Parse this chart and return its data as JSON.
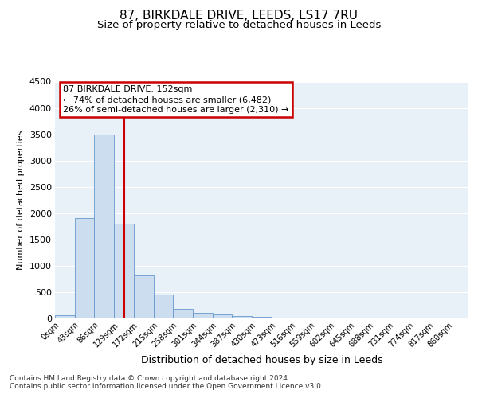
{
  "title1": "87, BIRKDALE DRIVE, LEEDS, LS17 7RU",
  "title2": "Size of property relative to detached houses in Leeds",
  "xlabel": "Distribution of detached houses by size in Leeds",
  "ylabel": "Number of detached properties",
  "bin_labels": [
    "0sqm",
    "43sqm",
    "86sqm",
    "129sqm",
    "172sqm",
    "215sqm",
    "258sqm",
    "301sqm",
    "344sqm",
    "387sqm",
    "430sqm",
    "473sqm",
    "516sqm",
    "559sqm",
    "602sqm",
    "645sqm",
    "688sqm",
    "731sqm",
    "774sqm",
    "817sqm",
    "860sqm"
  ],
  "bar_heights": [
    55,
    1900,
    3500,
    1800,
    820,
    450,
    180,
    110,
    75,
    50,
    35,
    8,
    4,
    2,
    1,
    0,
    0,
    0,
    0,
    0,
    0
  ],
  "bar_color": "#ccddf0",
  "bar_edge_color": "#6699cc",
  "vline_color": "#cc0000",
  "annotation_text": "87 BIRKDALE DRIVE: 152sqm\n← 74% of detached houses are smaller (6,482)\n26% of semi-detached houses are larger (2,310) →",
  "annotation_box_color": "#cc0000",
  "ylim": [
    0,
    4500
  ],
  "yticks": [
    0,
    500,
    1000,
    1500,
    2000,
    2500,
    3000,
    3500,
    4000,
    4500
  ],
  "footnote": "Contains HM Land Registry data © Crown copyright and database right 2024.\nContains public sector information licensed under the Open Government Licence v3.0.",
  "bg_color": "#e8f0f8",
  "fig_bg_color": "#ffffff",
  "title1_fontsize": 11,
  "title2_fontsize": 9.5,
  "grid_color": "#ffffff",
  "vline_x_bin": 3.0
}
